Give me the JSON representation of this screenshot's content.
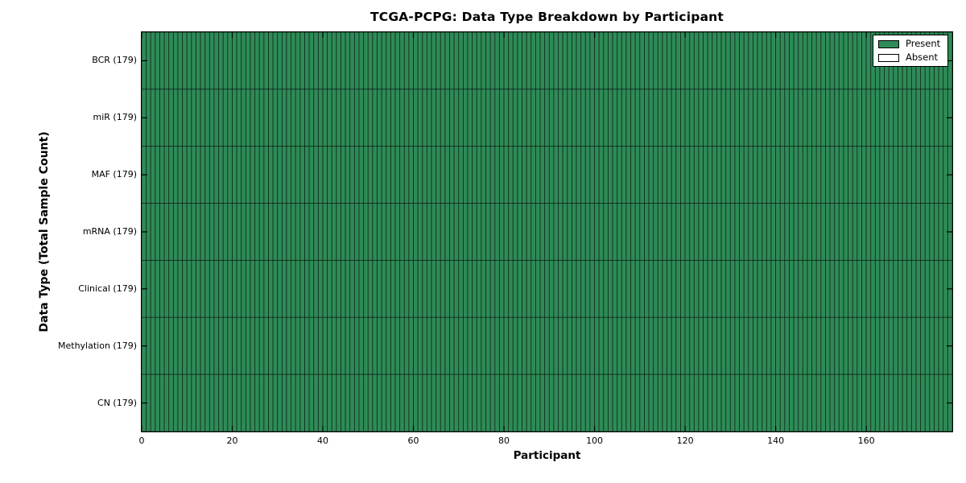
{
  "chart_data": {
    "type": "heatmap",
    "title": "TCGA-PCPG: Data Type Breakdown by Participant",
    "xlabel": "Participant",
    "ylabel": "Data Type (Total Sample Count)",
    "xlim": [
      0,
      179
    ],
    "x_ticks": [
      0,
      20,
      40,
      60,
      80,
      100,
      120,
      140,
      160
    ],
    "n_participants": 179,
    "categories": [
      "BCR (179)",
      "miR (179)",
      "MAF (179)",
      "mRNA (179)",
      "Clinical (179)",
      "Methylation (179)",
      "CN (179)"
    ],
    "rows": [
      {
        "label": "BCR (179)",
        "data_type": "BCR",
        "total_samples": 179,
        "present": 179,
        "absent": 0
      },
      {
        "label": "miR (179)",
        "data_type": "miR",
        "total_samples": 179,
        "present": 179,
        "absent": 0
      },
      {
        "label": "MAF (179)",
        "data_type": "MAF",
        "total_samples": 179,
        "present": 179,
        "absent": 0
      },
      {
        "label": "mRNA (179)",
        "data_type": "mRNA",
        "total_samples": 179,
        "present": 179,
        "absent": 0
      },
      {
        "label": "Clinical (179)",
        "data_type": "Clinical",
        "total_samples": 179,
        "present": 179,
        "absent": 0
      },
      {
        "label": "Methylation (179)",
        "data_type": "Methylation",
        "total_samples": 179,
        "present": 179,
        "absent": 0
      },
      {
        "label": "CN (179)",
        "data_type": "CN",
        "total_samples": 179,
        "present": 179,
        "absent": 0
      }
    ],
    "legend": {
      "position": "upper right",
      "entries": [
        {
          "label": "Present",
          "color": "#2e8b57"
        },
        {
          "label": "Absent",
          "color": "#ffffff"
        }
      ]
    },
    "colors": {
      "present": "#2e8b57",
      "absent": "#ffffff",
      "cell_edge": "rgba(0,0,0,0.55)",
      "axis": "#000000"
    },
    "grid": "cell-borders"
  }
}
